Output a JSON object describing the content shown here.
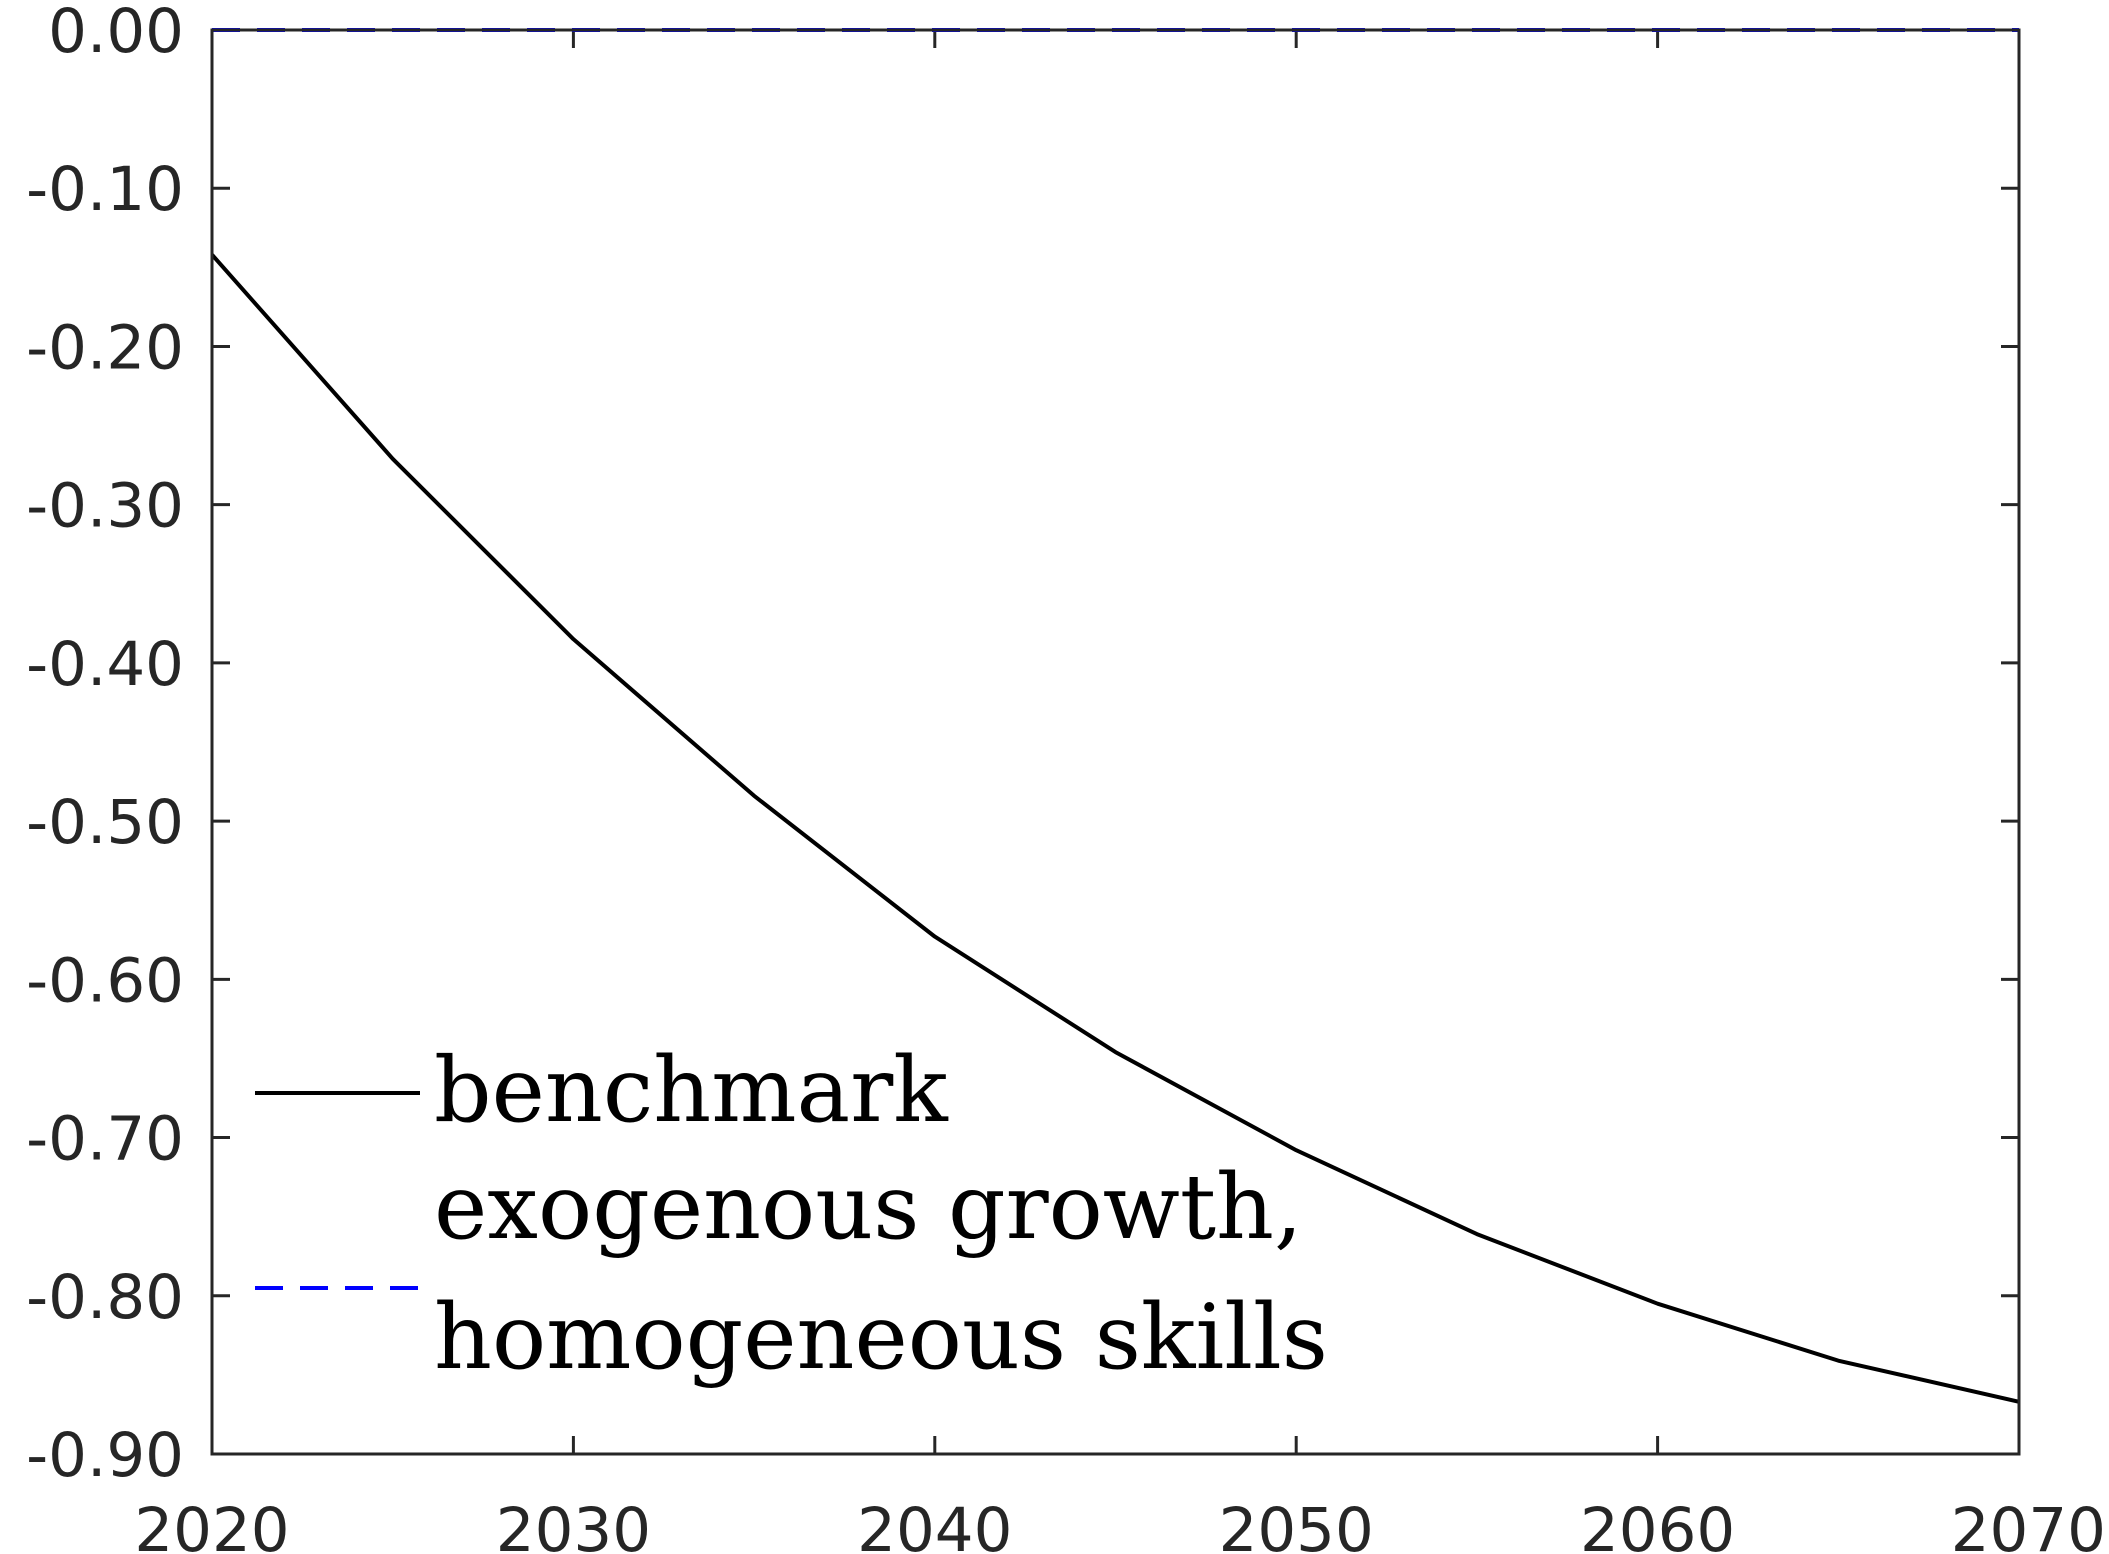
{
  "chart_data": {
    "type": "line",
    "title": "",
    "xlabel": "",
    "ylabel": "",
    "xlim": [
      2020,
      2070
    ],
    "ylim": [
      -0.9,
      0.0
    ],
    "x_ticks": [
      2020,
      2030,
      2040,
      2050,
      2060,
      2070
    ],
    "x_tick_labels": [
      "2020",
      "2030",
      "2040",
      "2050",
      "2060",
      "2070"
    ],
    "y_ticks": [
      0.0,
      -0.1,
      -0.2,
      -0.3,
      -0.4,
      -0.5,
      -0.6,
      -0.7,
      -0.8,
      -0.9
    ],
    "y_tick_labels": [
      "0.00",
      "-0.10",
      "-0.20",
      "-0.30",
      "-0.40",
      "-0.50",
      "-0.60",
      "-0.70",
      "-0.80",
      "-0.90"
    ],
    "grid": false,
    "legend_position": "bottom-left",
    "series": [
      {
        "name": "benchmark",
        "color": "#000000",
        "style": "solid",
        "x": [
          2020,
          2025,
          2030,
          2035,
          2040,
          2045,
          2050,
          2055,
          2060,
          2065,
          2070
        ],
        "y": [
          -0.142,
          -0.271,
          -0.385,
          -0.484,
          -0.573,
          -0.646,
          -0.708,
          -0.761,
          -0.805,
          -0.841,
          -0.867
        ]
      },
      {
        "name": "exogenous growth, homogeneous skills",
        "name_lines": [
          "exogenous growth,",
          "homogeneous skills"
        ],
        "color": "#0000ff",
        "style": "dashed",
        "x": [
          2020,
          2025,
          2030,
          2035,
          2040,
          2045,
          2050,
          2055,
          2060,
          2065,
          2070
        ],
        "y": [
          0.0,
          0.0,
          0.0,
          0.0,
          0.0,
          0.0,
          0.0,
          0.0,
          0.0,
          0.0,
          0.0
        ]
      }
    ]
  }
}
